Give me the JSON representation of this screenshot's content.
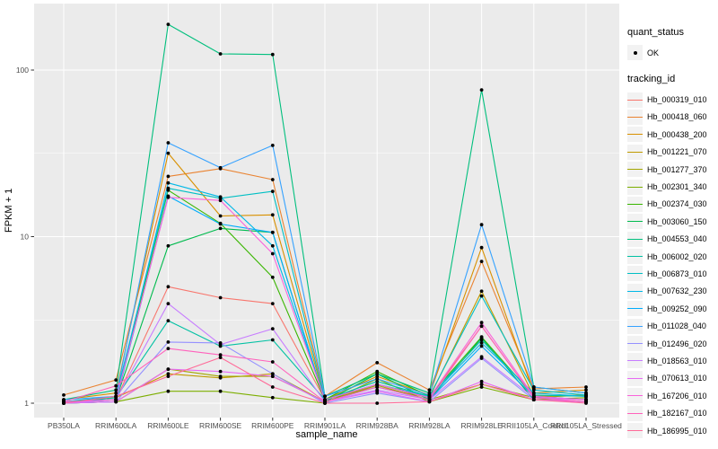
{
  "figure": {
    "panel_bg": "#EBEBEB",
    "grid_color": "#FFFFFF",
    "point_color": "#000000",
    "tick_color": "#333333",
    "tick_label_color": "#4D4D4D"
  },
  "axes": {
    "x": {
      "title": "sample_name"
    },
    "y": {
      "title": "FPKM + 1",
      "tick_labels": [
        "1",
        "10",
        "100"
      ]
    }
  },
  "legend": {
    "quant_status": {
      "title": "quant_status",
      "items": [
        {
          "label": "OK",
          "marker": "point-icon"
        }
      ]
    },
    "tracking_id": {
      "title": "tracking_id"
    }
  },
  "chart_data": {
    "type": "line",
    "title": "",
    "xlabel": "sample_name",
    "ylabel": "FPKM + 1",
    "yscale": "log10",
    "yticks": [
      1,
      10,
      100
    ],
    "ylim": [
      0.84,
      250
    ],
    "grid": true,
    "legend_position": "right",
    "categories": [
      "PB350LA",
      "RRIM600LA",
      "RRIM600LE",
      "RRIM600SE",
      "RRIM600PE",
      "RRIM901LA",
      "RRIM928BA",
      "RRIM928LA",
      "RRIM928LE",
      "RRII105LA_Control",
      "RRII105LA_Stressed"
    ],
    "series": [
      {
        "name": "Hb_000319_010",
        "color": "#F8766D",
        "values": [
          1.02,
          1.05,
          5.0,
          4.3,
          3.96,
          1.05,
          1.25,
          1.08,
          2.9,
          1.08,
          1.02
        ]
      },
      {
        "name": "Hb_000418_060",
        "color": "#EA8331",
        "values": [
          1.12,
          1.38,
          23,
          25.6,
          22,
          1.1,
          1.75,
          1.2,
          7.1,
          1.22,
          1.25
        ]
      },
      {
        "name": "Hb_000438_200",
        "color": "#D89000",
        "values": [
          1.05,
          1.15,
          31.7,
          13.3,
          13.5,
          1.05,
          1.45,
          1.12,
          8.6,
          1.15,
          1.2
        ]
      },
      {
        "name": "Hb_001221_070",
        "color": "#C09B00",
        "values": [
          1.02,
          1.08,
          1.5,
          1.42,
          1.5,
          1.02,
          1.3,
          1.08,
          4.7,
          1.1,
          1.12
        ]
      },
      {
        "name": "Hb_001277_370",
        "color": "#A3A500",
        "values": [
          1.0,
          1.02,
          1.6,
          1.45,
          1.45,
          1.02,
          1.28,
          1.05,
          1.3,
          1.08,
          1.12
        ]
      },
      {
        "name": "Hb_002301_340",
        "color": "#7CAE00",
        "values": [
          1.0,
          1.02,
          1.18,
          1.18,
          1.08,
          1.0,
          1.4,
          1.02,
          1.25,
          1.05,
          1.08
        ]
      },
      {
        "name": "Hb_002374_030",
        "color": "#39B600",
        "values": [
          1.02,
          1.05,
          19,
          12,
          5.7,
          1.05,
          1.55,
          1.1,
          2.5,
          1.1,
          1.05
        ]
      },
      {
        "name": "Hb_003060_150",
        "color": "#00BB4E",
        "values": [
          1.0,
          1.05,
          8.8,
          11.2,
          10.6,
          1.02,
          1.5,
          1.05,
          2.47,
          1.05,
          1.02
        ]
      },
      {
        "name": "Hb_004553_040",
        "color": "#00BF7D",
        "values": [
          1.05,
          1.2,
          188,
          125,
          124,
          1.1,
          1.5,
          1.15,
          76,
          1.25,
          1.15
        ]
      },
      {
        "name": "Hb_006002_020",
        "color": "#00C1A3",
        "values": [
          1.0,
          1.08,
          3.13,
          2.2,
          2.4,
          1.05,
          1.35,
          1.1,
          2.4,
          1.12,
          1.1
        ]
      },
      {
        "name": "Hb_006873_010",
        "color": "#00BFC4",
        "values": [
          1.02,
          1.1,
          19.5,
          17,
          18.7,
          1.05,
          1.3,
          1.1,
          4.4,
          1.2,
          1.12
        ]
      },
      {
        "name": "Hb_007632_230",
        "color": "#00B8E7",
        "values": [
          1.02,
          1.05,
          21,
          17.3,
          8.8,
          1.05,
          1.3,
          1.08,
          2.3,
          1.15,
          1.1
        ]
      },
      {
        "name": "Hb_009252_090",
        "color": "#00ACFC",
        "values": [
          1.0,
          1.02,
          17.5,
          11.9,
          10.6,
          1.02,
          1.25,
          1.05,
          2.2,
          1.1,
          1.05
        ]
      },
      {
        "name": "Hb_011028_040",
        "color": "#35A2FF",
        "values": [
          1.05,
          1.1,
          36.6,
          25.9,
          35.3,
          1.1,
          1.4,
          1.12,
          11.8,
          1.25,
          1.15
        ]
      },
      {
        "name": "Hb_012496_020",
        "color": "#9590FF",
        "values": [
          1.0,
          1.02,
          2.33,
          2.3,
          1.5,
          1.0,
          1.15,
          1.02,
          1.86,
          1.05,
          1.02
        ]
      },
      {
        "name": "Hb_018563_010",
        "color": "#C77CFF",
        "values": [
          1.0,
          1.05,
          3.96,
          2.25,
          2.8,
          1.02,
          1.2,
          1.05,
          1.9,
          1.08,
          1.05
        ]
      },
      {
        "name": "Hb_070613_010",
        "color": "#E76BF3",
        "values": [
          1.0,
          1.02,
          1.6,
          1.55,
          1.45,
          1.02,
          1.18,
          1.02,
          1.35,
          1.05,
          1.02
        ]
      },
      {
        "name": "Hb_167206_010",
        "color": "#FA62DB",
        "values": [
          1.02,
          1.05,
          17.2,
          16.5,
          7.9,
          1.05,
          1.3,
          1.08,
          3.05,
          1.1,
          1.05
        ]
      },
      {
        "name": "Hb_182167_010",
        "color": "#FF62BC",
        "values": [
          1.02,
          1.27,
          2.13,
          1.95,
          1.77,
          1.02,
          1.25,
          1.05,
          2.9,
          1.08,
          1.02
        ]
      },
      {
        "name": "Hb_186995_010",
        "color": "#FF6A98",
        "values": [
          1.0,
          1.1,
          1.45,
          1.88,
          1.25,
          1.0,
          1.0,
          1.02,
          1.3,
          1.05,
          1.0
        ]
      }
    ]
  }
}
